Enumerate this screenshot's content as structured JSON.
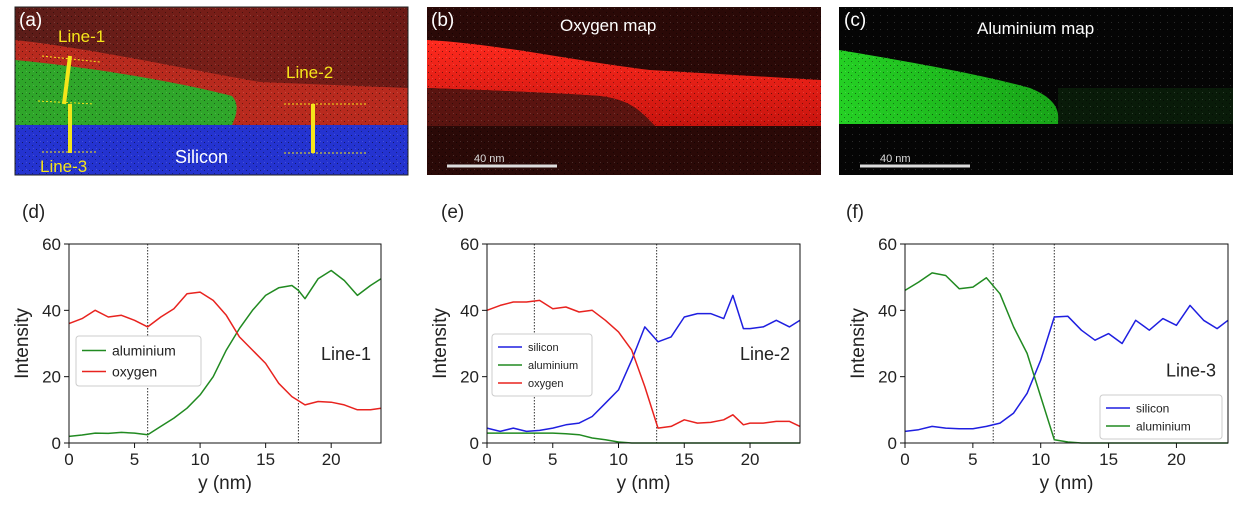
{
  "panels": {
    "a": {
      "label": "(a)",
      "line1": "Line-1",
      "line2": "Line-2",
      "line3": "Line-3",
      "silicon": "Silicon"
    },
    "b": {
      "label": "(b)",
      "title": "Oxygen map",
      "scalebar": "40 nm"
    },
    "c": {
      "label": "(c)",
      "title": "Aluminium map",
      "scalebar": "40 nm"
    },
    "d": {
      "label": "(d)"
    },
    "e": {
      "label": "(e)"
    },
    "f": {
      "label": "(f)"
    }
  },
  "colors": {
    "silicon": "#1f1fe0",
    "aluminium": "#218a21",
    "oxygen": "#e8231f",
    "annot": "#f5e51a"
  },
  "chart_data": [
    {
      "panel": "d",
      "type": "line",
      "title": "Line-1",
      "xlabel": "y (nm)",
      "ylabel": "Intensity",
      "xlim": [
        0,
        23.8
      ],
      "ylim": [
        0,
        60
      ],
      "xticks": [
        0,
        5,
        10,
        15,
        20
      ],
      "yticks": [
        0,
        20,
        40,
        60
      ],
      "vlines": [
        6.0,
        17.5
      ],
      "legend_position": "center-left",
      "series": [
        {
          "name": "aluminium",
          "color": "#218a21",
          "x": [
            0,
            1,
            2,
            3,
            4,
            5,
            6,
            7,
            8,
            9,
            10,
            11,
            12,
            13,
            14,
            15,
            16,
            17,
            17.5,
            18,
            19,
            20,
            21,
            22,
            23,
            23.8
          ],
          "y": [
            2,
            2.4,
            3,
            2.9,
            3.2,
            3,
            2.5,
            5,
            7.5,
            10.5,
            14.5,
            20,
            28,
            34.5,
            40,
            44.5,
            46.8,
            47.5,
            46,
            43.5,
            49.5,
            52,
            49,
            44.5,
            47.5,
            49.5
          ]
        },
        {
          "name": "oxygen",
          "color": "#e8231f",
          "x": [
            0,
            1,
            2,
            3,
            4,
            5,
            6,
            7,
            8,
            9,
            10,
            11,
            12,
            13,
            14,
            15,
            16,
            17,
            18,
            19,
            20,
            21,
            22,
            23,
            23.8
          ],
          "y": [
            36,
            37.5,
            40,
            38,
            38.5,
            37,
            35,
            38,
            40.5,
            45,
            45.5,
            43,
            38.5,
            32,
            28,
            24,
            18,
            14,
            11.5,
            12.5,
            12.3,
            11.5,
            10,
            10,
            10.5
          ]
        }
      ]
    },
    {
      "panel": "e",
      "type": "line",
      "title": "Line-2",
      "xlabel": "y (nm)",
      "ylabel": "Intensity",
      "xlim": [
        0,
        23.8
      ],
      "ylim": [
        0,
        60
      ],
      "xticks": [
        0,
        5,
        10,
        15,
        20
      ],
      "yticks": [
        0,
        20,
        40,
        60
      ],
      "vlines": [
        3.6,
        12.9
      ],
      "legend_position": "center-left",
      "series": [
        {
          "name": "silicon",
          "color": "#1f1fe0",
          "x": [
            0,
            1,
            2,
            3,
            4,
            5,
            6,
            7,
            8,
            9,
            10,
            11,
            12,
            13,
            14,
            15,
            16,
            17,
            18,
            18.7,
            19.5,
            20,
            21,
            22,
            23,
            23.8
          ],
          "y": [
            4.5,
            3.5,
            4.5,
            3.5,
            3.8,
            4.5,
            5.5,
            6,
            8,
            12,
            16,
            25,
            35,
            30.5,
            32,
            38,
            39,
            39,
            37.5,
            44.5,
            34.5,
            34.5,
            35,
            37,
            35,
            37
          ]
        },
        {
          "name": "aluminium",
          "color": "#218a21",
          "x": [
            0,
            1,
            2,
            3,
            4,
            5,
            6,
            7,
            8,
            9,
            10,
            11,
            12,
            13,
            14,
            15,
            16,
            17,
            18,
            19,
            20,
            21,
            22,
            23,
            23.8
          ],
          "y": [
            3,
            3,
            3,
            3,
            3,
            3,
            2.8,
            2.5,
            1.5,
            1,
            0.3,
            0,
            0,
            0,
            0,
            0,
            0,
            0,
            0,
            0,
            0,
            0,
            0,
            0,
            0
          ]
        },
        {
          "name": "oxygen",
          "color": "#e8231f",
          "x": [
            0,
            1,
            2,
            3,
            4,
            5,
            6,
            7,
            8,
            9,
            10,
            11,
            12,
            13,
            14,
            15,
            16,
            17,
            18,
            18.7,
            19.5,
            20,
            21,
            22,
            23,
            23.8
          ],
          "y": [
            40,
            41.5,
            42.5,
            42.5,
            43,
            40.5,
            41,
            39.5,
            40,
            37,
            33.5,
            28,
            17,
            4.5,
            5,
            7,
            6,
            6.2,
            7,
            8.5,
            5.5,
            6,
            6,
            6.5,
            6.5,
            5
          ]
        }
      ]
    },
    {
      "panel": "f",
      "type": "line",
      "title": "Line-3",
      "xlabel": "y (nm)",
      "ylabel": "Intensity",
      "xlim": [
        0,
        23.8
      ],
      "ylim": [
        0,
        60
      ],
      "xticks": [
        0,
        5,
        10,
        15,
        20
      ],
      "yticks": [
        0,
        20,
        40,
        60
      ],
      "vlines": [
        6.5,
        11.0
      ],
      "legend_position": "bottom-right",
      "series": [
        {
          "name": "silicon",
          "color": "#1f1fe0",
          "x": [
            0,
            1,
            2,
            3,
            4,
            5,
            6,
            7,
            8,
            9,
            10,
            11,
            12,
            13,
            14,
            15,
            16,
            17,
            18,
            19,
            20,
            21,
            22,
            23,
            23.8
          ],
          "y": [
            3.5,
            4,
            5,
            4.5,
            4.3,
            4.3,
            5,
            6,
            9,
            15,
            25,
            38,
            38.2,
            34,
            31,
            33,
            30,
            37,
            34,
            37.5,
            35.5,
            41.5,
            37,
            34.5,
            37
          ]
        },
        {
          "name": "aluminium",
          "color": "#218a21",
          "x": [
            0,
            1,
            2,
            3,
            4,
            5,
            6,
            7,
            8,
            9,
            10,
            11,
            12,
            13,
            14,
            15,
            16,
            17,
            18,
            19,
            20,
            21,
            22,
            23,
            23.8
          ],
          "y": [
            46,
            48.5,
            51.3,
            50.5,
            46.5,
            47,
            49.8,
            45,
            35,
            27,
            14,
            1,
            0.3,
            0,
            0,
            0,
            0,
            0,
            0,
            0,
            0,
            0,
            0,
            0,
            0
          ]
        }
      ]
    }
  ]
}
